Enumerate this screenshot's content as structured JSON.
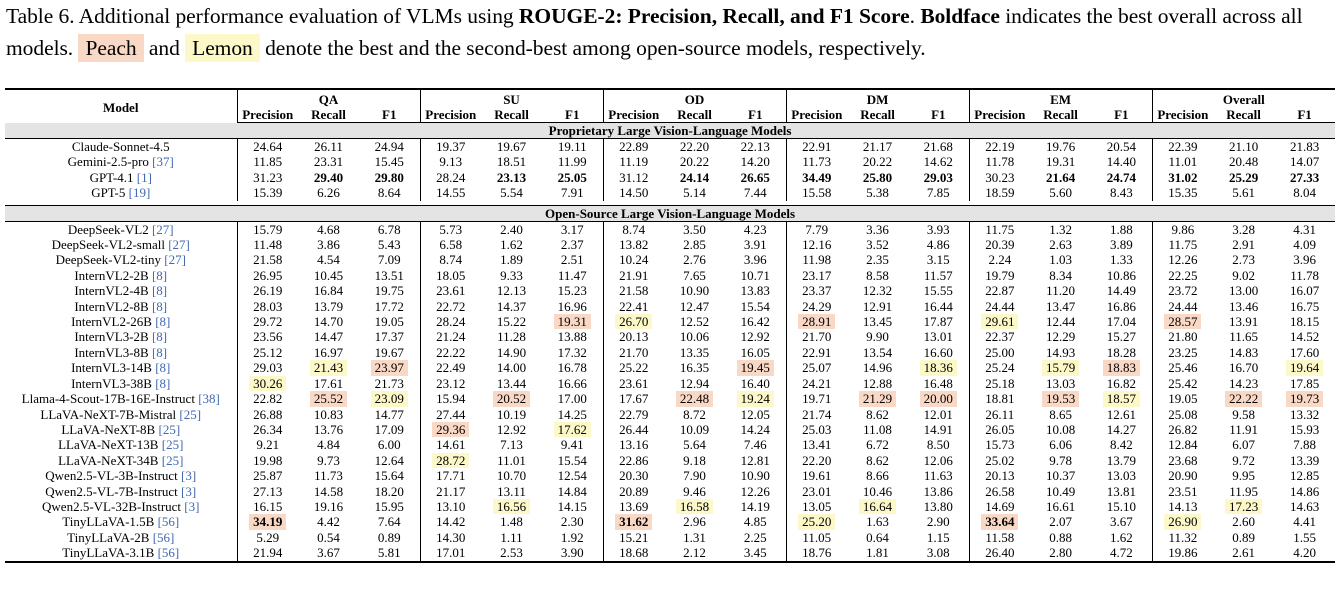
{
  "caption": {
    "prefix": "Table 6.  Additional performance evaluation of VLMs using ",
    "bold1": "ROUGE-2: Precision, Recall, and F1 Score",
    "mid1": ".  ",
    "bold2": "Boldface",
    "mid2": " indicates the best overall across all models.  ",
    "peach_label": "Peach",
    "and": " and ",
    "lemon_label": "Lemon",
    "suffix": " denote the best and the second-best among open-source models, respectively."
  },
  "colors": {
    "peach": "#fad8c6",
    "lemon": "#fcf8c8",
    "cite": "#4169b0",
    "section_bg": "#e4e4e4"
  },
  "header": {
    "model": "Model",
    "groups": [
      "QA",
      "SU",
      "OD",
      "DM",
      "EM",
      "Overall"
    ],
    "metrics": [
      "Precision",
      "Recall",
      "F1"
    ]
  },
  "sections": [
    {
      "title": "Proprietary Large Vision-Language Models",
      "rows": [
        {
          "name": "Claude-Sonnet-4.5",
          "cite": "",
          "values": [
            "24.64",
            "26.11",
            "24.94",
            "19.37",
            "19.67",
            "19.11",
            "22.89",
            "22.20",
            "22.13",
            "22.91",
            "21.17",
            "21.68",
            "22.19",
            "19.76",
            "20.54",
            "22.39",
            "21.10",
            "21.83"
          ],
          "bold": [],
          "peach": [],
          "lemon": []
        },
        {
          "name": "Gemini-2.5-pro",
          "cite": "[37]",
          "values": [
            "11.85",
            "23.31",
            "15.45",
            "9.13",
            "18.51",
            "11.99",
            "11.19",
            "20.22",
            "14.20",
            "11.73",
            "20.22",
            "14.62",
            "11.78",
            "19.31",
            "14.40",
            "11.01",
            "20.48",
            "14.07"
          ],
          "bold": [],
          "peach": [],
          "lemon": []
        },
        {
          "name": "GPT-4.1",
          "cite": "[1]",
          "values": [
            "31.23",
            "29.40",
            "29.80",
            "28.24",
            "23.13",
            "25.05",
            "31.12",
            "24.14",
            "26.65",
            "34.49",
            "25.80",
            "29.03",
            "30.23",
            "21.64",
            "24.74",
            "31.02",
            "25.29",
            "27.33"
          ],
          "bold": [
            1,
            2,
            4,
            5,
            7,
            8,
            9,
            10,
            11,
            13,
            14,
            15,
            16,
            17
          ],
          "peach": [],
          "lemon": []
        },
        {
          "name": "GPT-5",
          "cite": "[19]",
          "values": [
            "15.39",
            "6.26",
            "8.64",
            "14.55",
            "5.54",
            "7.91",
            "14.50",
            "5.14",
            "7.44",
            "15.58",
            "5.38",
            "7.85",
            "18.59",
            "5.60",
            "8.43",
            "15.35",
            "5.61",
            "8.04"
          ],
          "bold": [],
          "peach": [],
          "lemon": []
        }
      ]
    },
    {
      "title": "Open-Source Large Vision-Language Models",
      "rows": [
        {
          "name": "DeepSeek-VL2",
          "cite": "[27]",
          "values": [
            "15.79",
            "4.68",
            "6.78",
            "5.73",
            "2.40",
            "3.17",
            "8.74",
            "3.50",
            "4.23",
            "7.79",
            "3.36",
            "3.93",
            "11.75",
            "1.32",
            "1.88",
            "9.86",
            "3.28",
            "4.31"
          ],
          "bold": [],
          "peach": [],
          "lemon": []
        },
        {
          "name": "DeepSeek-VL2-small",
          "cite": "[27]",
          "values": [
            "11.48",
            "3.86",
            "5.43",
            "6.58",
            "1.62",
            "2.37",
            "13.82",
            "2.85",
            "3.91",
            "12.16",
            "3.52",
            "4.86",
            "20.39",
            "2.63",
            "3.89",
            "11.75",
            "2.91",
            "4.09"
          ],
          "bold": [],
          "peach": [],
          "lemon": []
        },
        {
          "name": "DeepSeek-VL2-tiny",
          "cite": "[27]",
          "values": [
            "21.58",
            "4.54",
            "7.09",
            "8.74",
            "1.89",
            "2.51",
            "10.24",
            "2.76",
            "3.96",
            "11.98",
            "2.35",
            "3.15",
            "2.24",
            "1.03",
            "1.33",
            "12.26",
            "2.73",
            "3.96"
          ],
          "bold": [],
          "peach": [],
          "lemon": []
        },
        {
          "name": "InternVL2-2B",
          "cite": "[8]",
          "values": [
            "26.95",
            "10.45",
            "13.51",
            "18.05",
            "9.33",
            "11.47",
            "21.91",
            "7.65",
            "10.71",
            "23.17",
            "8.58",
            "11.57",
            "19.79",
            "8.34",
            "10.86",
            "22.25",
            "9.02",
            "11.78"
          ],
          "bold": [],
          "peach": [],
          "lemon": []
        },
        {
          "name": "InternVL2-4B",
          "cite": "[8]",
          "values": [
            "26.19",
            "16.84",
            "19.75",
            "23.61",
            "12.13",
            "15.23",
            "21.58",
            "10.90",
            "13.83",
            "23.37",
            "12.32",
            "15.55",
            "22.87",
            "11.20",
            "14.49",
            "23.72",
            "13.00",
            "16.07"
          ],
          "bold": [],
          "peach": [],
          "lemon": []
        },
        {
          "name": "InternVL2-8B",
          "cite": "[8]",
          "values": [
            "28.03",
            "13.79",
            "17.72",
            "22.72",
            "14.37",
            "16.96",
            "22.41",
            "12.47",
            "15.54",
            "24.29",
            "12.91",
            "16.44",
            "24.44",
            "13.47",
            "16.86",
            "24.44",
            "13.46",
            "16.75"
          ],
          "bold": [],
          "peach": [],
          "lemon": []
        },
        {
          "name": "InternVL2-26B",
          "cite": "[8]",
          "values": [
            "29.72",
            "14.70",
            "19.05",
            "28.24",
            "15.22",
            "19.31",
            "26.70",
            "12.52",
            "16.42",
            "28.91",
            "13.45",
            "17.87",
            "29.61",
            "12.44",
            "17.04",
            "28.57",
            "13.91",
            "18.15"
          ],
          "bold": [],
          "peach": [
            5,
            9,
            15
          ],
          "lemon": [
            6,
            12
          ]
        },
        {
          "name": "InternVL3-2B",
          "cite": "[8]",
          "values": [
            "23.56",
            "14.47",
            "17.37",
            "21.24",
            "11.28",
            "13.88",
            "20.13",
            "10.06",
            "12.92",
            "21.70",
            "9.90",
            "13.01",
            "22.37",
            "12.29",
            "15.27",
            "21.80",
            "11.65",
            "14.52"
          ],
          "bold": [],
          "peach": [],
          "lemon": []
        },
        {
          "name": "InternVL3-8B",
          "cite": "[8]",
          "values": [
            "25.12",
            "16.97",
            "19.67",
            "22.22",
            "14.90",
            "17.32",
            "21.70",
            "13.35",
            "16.05",
            "22.91",
            "13.54",
            "16.60",
            "25.00",
            "14.93",
            "18.28",
            "23.25",
            "14.83",
            "17.60"
          ],
          "bold": [],
          "peach": [],
          "lemon": []
        },
        {
          "name": "InternVL3-14B",
          "cite": "[8]",
          "values": [
            "29.03",
            "21.43",
            "23.97",
            "22.49",
            "14.00",
            "16.78",
            "25.22",
            "16.35",
            "19.45",
            "25.07",
            "14.96",
            "18.36",
            "25.24",
            "15.79",
            "18.83",
            "25.46",
            "16.70",
            "19.64"
          ],
          "bold": [],
          "peach": [
            2,
            8,
            14
          ],
          "lemon": [
            1,
            11,
            13,
            17
          ]
        },
        {
          "name": "InternVL3-38B",
          "cite": "[8]",
          "values": [
            "30.26",
            "17.61",
            "21.73",
            "23.12",
            "13.44",
            "16.66",
            "23.61",
            "12.94",
            "16.40",
            "24.21",
            "12.88",
            "16.48",
            "25.18",
            "13.03",
            "16.82",
            "25.42",
            "14.23",
            "17.85"
          ],
          "bold": [],
          "peach": [],
          "lemon": [
            0
          ]
        },
        {
          "name": "Llama-4-Scout-17B-16E-Instruct",
          "cite": "[38]",
          "values": [
            "22.82",
            "25.52",
            "23.09",
            "15.94",
            "20.52",
            "17.00",
            "17.67",
            "22.48",
            "19.24",
            "19.71",
            "21.29",
            "20.00",
            "18.81",
            "19.53",
            "18.57",
            "19.05",
            "22.22",
            "19.73"
          ],
          "bold": [],
          "peach": [
            1,
            4,
            7,
            10,
            11,
            13,
            16,
            17
          ],
          "lemon": [
            2,
            8,
            14
          ]
        },
        {
          "name": "LLaVA-NeXT-7B-Mistral",
          "cite": "[25]",
          "values": [
            "26.88",
            "10.83",
            "14.77",
            "27.44",
            "10.19",
            "14.25",
            "22.79",
            "8.72",
            "12.05",
            "21.74",
            "8.62",
            "12.01",
            "26.11",
            "8.65",
            "12.61",
            "25.08",
            "9.58",
            "13.32"
          ],
          "bold": [],
          "peach": [],
          "lemon": []
        },
        {
          "name": "LLaVA-NeXT-8B",
          "cite": "[25]",
          "values": [
            "26.34",
            "13.76",
            "17.09",
            "29.36",
            "12.92",
            "17.62",
            "26.44",
            "10.09",
            "14.24",
            "25.03",
            "11.08",
            "14.91",
            "26.05",
            "10.08",
            "14.27",
            "26.82",
            "11.91",
            "15.93"
          ],
          "bold": [],
          "peach": [
            3
          ],
          "lemon": [
            5
          ]
        },
        {
          "name": "LLaVA-NeXT-13B",
          "cite": "[25]",
          "values": [
            "9.21",
            "4.84",
            "6.00",
            "14.61",
            "7.13",
            "9.41",
            "13.16",
            "5.64",
            "7.46",
            "13.41",
            "6.72",
            "8.50",
            "15.73",
            "6.06",
            "8.42",
            "12.84",
            "6.07",
            "7.88"
          ],
          "bold": [],
          "peach": [],
          "lemon": []
        },
        {
          "name": "LLaVA-NeXT-34B",
          "cite": "[25]",
          "values": [
            "19.98",
            "9.73",
            "12.64",
            "28.72",
            "11.01",
            "15.54",
            "22.86",
            "9.18",
            "12.81",
            "22.20",
            "8.62",
            "12.06",
            "25.02",
            "9.78",
            "13.79",
            "23.68",
            "9.72",
            "13.39"
          ],
          "bold": [],
          "peach": [],
          "lemon": [
            3
          ]
        },
        {
          "name": "Qwen2.5-VL-3B-Instruct",
          "cite": "[3]",
          "values": [
            "25.87",
            "11.73",
            "15.64",
            "17.71",
            "10.70",
            "12.54",
            "20.30",
            "7.90",
            "10.90",
            "19.61",
            "8.66",
            "11.63",
            "20.13",
            "10.37",
            "13.03",
            "20.90",
            "9.95",
            "12.85"
          ],
          "bold": [],
          "peach": [],
          "lemon": []
        },
        {
          "name": "Qwen2.5-VL-7B-Instruct",
          "cite": "[3]",
          "values": [
            "27.13",
            "14.58",
            "18.20",
            "21.17",
            "13.11",
            "14.84",
            "20.89",
            "9.46",
            "12.26",
            "23.01",
            "10.46",
            "13.86",
            "26.58",
            "10.49",
            "13.81",
            "23.51",
            "11.95",
            "14.86"
          ],
          "bold": [],
          "peach": [],
          "lemon": []
        },
        {
          "name": "Qwen2.5-VL-32B-Instruct",
          "cite": "[3]",
          "values": [
            "16.15",
            "19.16",
            "15.95",
            "13.10",
            "16.56",
            "14.15",
            "13.69",
            "16.58",
            "14.19",
            "13.05",
            "16.64",
            "13.80",
            "14.69",
            "16.61",
            "15.10",
            "14.13",
            "17.23",
            "14.63"
          ],
          "bold": [],
          "peach": [],
          "lemon": [
            4,
            7,
            10,
            16
          ]
        },
        {
          "name": "TinyLLaVA-1.5B",
          "cite": "[56]",
          "values": [
            "34.19",
            "4.42",
            "7.64",
            "14.42",
            "1.48",
            "2.30",
            "31.62",
            "2.96",
            "4.85",
            "25.20",
            "1.63",
            "2.90",
            "33.64",
            "2.07",
            "3.67",
            "26.90",
            "2.60",
            "4.41"
          ],
          "bold": [
            0,
            6,
            12
          ],
          "peach": [
            0,
            6,
            12
          ],
          "lemon": [
            9,
            15
          ]
        },
        {
          "name": "TinyLLaVA-2B",
          "cite": "[56]",
          "values": [
            "5.29",
            "0.54",
            "0.89",
            "14.30",
            "1.11",
            "1.92",
            "15.21",
            "1.31",
            "2.25",
            "11.05",
            "0.64",
            "1.15",
            "11.58",
            "0.88",
            "1.62",
            "11.32",
            "0.89",
            "1.55"
          ],
          "bold": [],
          "peach": [],
          "lemon": []
        },
        {
          "name": "TinyLLaVA-3.1B",
          "cite": "[56]",
          "values": [
            "21.94",
            "3.67",
            "5.81",
            "17.01",
            "2.53",
            "3.90",
            "18.68",
            "2.12",
            "3.45",
            "18.76",
            "1.81",
            "3.08",
            "26.40",
            "2.80",
            "4.72",
            "19.86",
            "2.61",
            "4.20"
          ],
          "bold": [],
          "peach": [],
          "lemon": []
        }
      ]
    }
  ]
}
